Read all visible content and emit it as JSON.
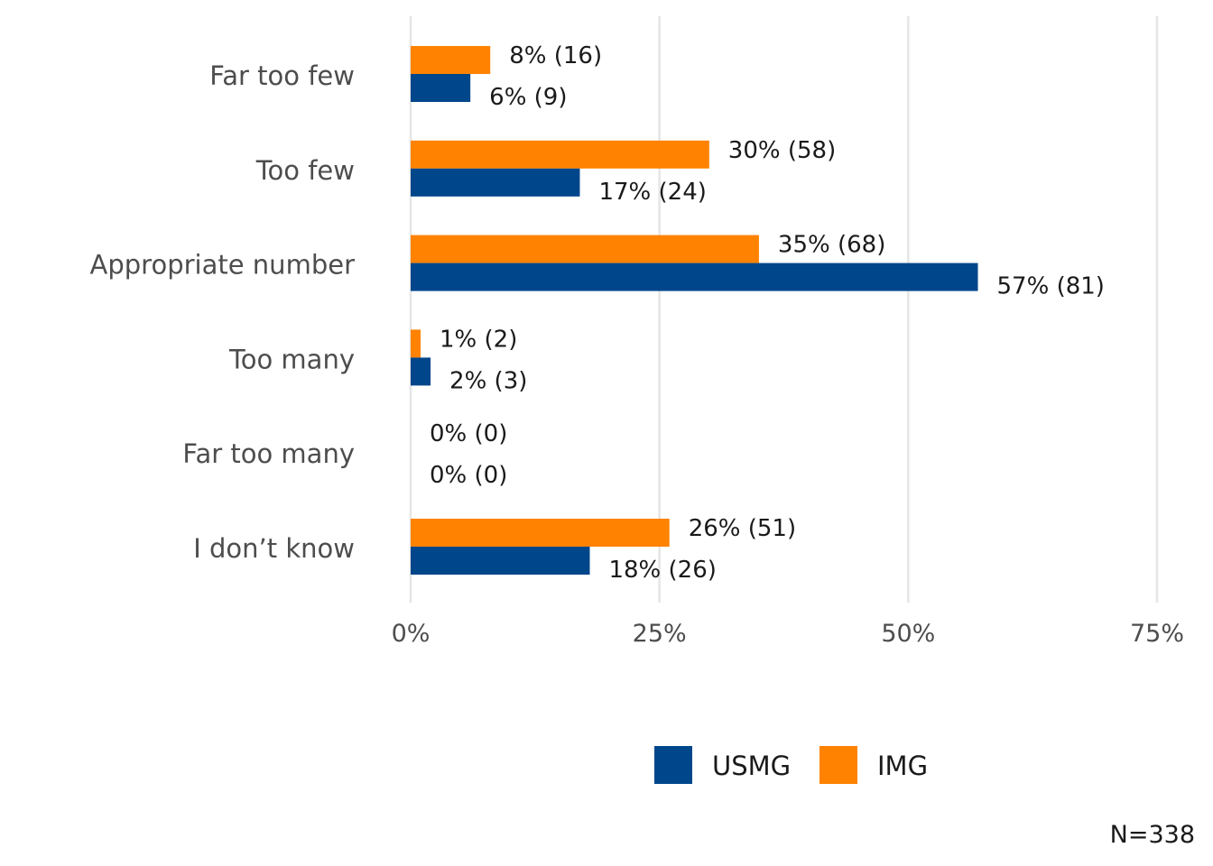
{
  "chart_data": {
    "type": "bar",
    "orientation": "horizontal",
    "categories": [
      "Far too few",
      "Too few",
      "Appropriate number",
      "Too many",
      "Far too many",
      "I don’t know"
    ],
    "series": [
      {
        "name": "USMG",
        "color": "#00468b",
        "values": [
          6,
          17,
          57,
          2,
          0,
          18
        ],
        "labels": [
          "6% (9)",
          "17% (24)",
          "57% (81)",
          "2% (3)",
          "0% (0)",
          "18% (26)"
        ]
      },
      {
        "name": "IMG",
        "color": "#ff8200",
        "values": [
          8,
          30,
          35,
          1,
          0,
          26
        ],
        "labels": [
          "8% (16)",
          "30% (58)",
          "35% (68)",
          "1% (2)",
          "0% (0)",
          "26% (51)"
        ]
      }
    ],
    "xlim": [
      0,
      75
    ],
    "xticks": [
      0,
      25,
      50,
      75
    ],
    "xtick_labels": [
      "0%",
      "25%",
      "50%",
      "75%"
    ],
    "grid": true,
    "legend_position": "bottom",
    "note": "N=338"
  }
}
